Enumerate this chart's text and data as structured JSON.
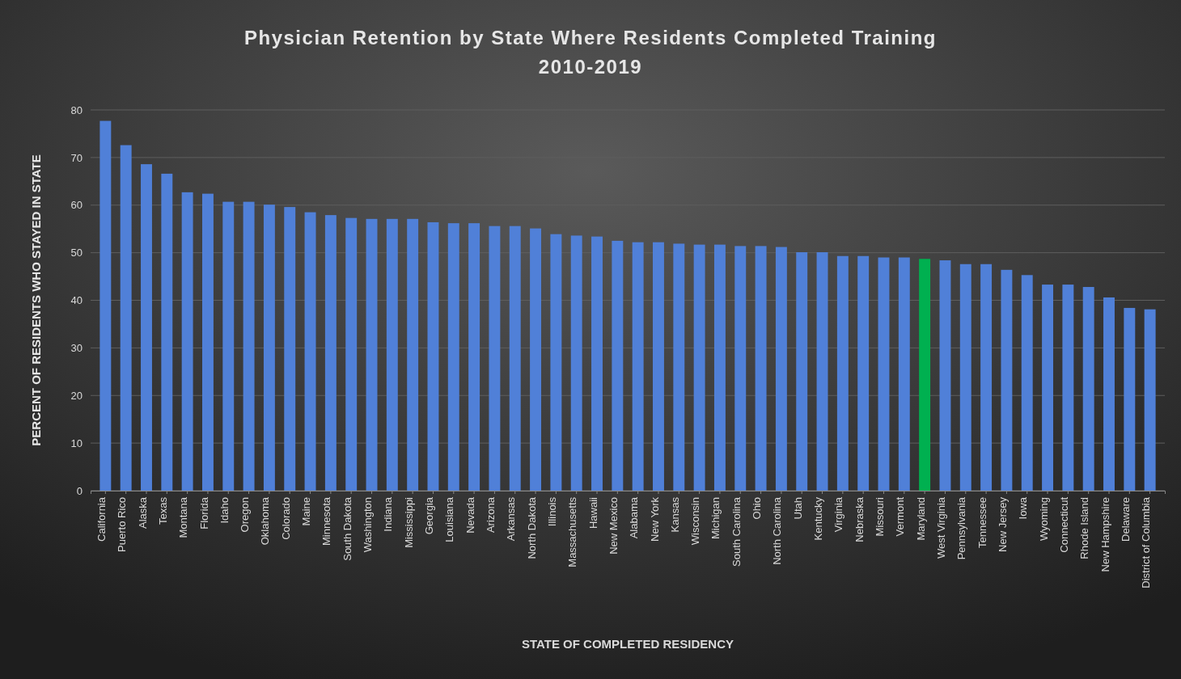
{
  "chart_data": {
    "type": "bar",
    "title": "Physician Retention by State Where Residents Completed Training\n2010-2019",
    "xlabel": "STATE OF COMPLETED RESIDENCY",
    "ylabel": "PERCENT OF RESIDENTS WHO STAYED IN STATE",
    "categories": [
      "California",
      "Puerto Rico",
      "Alaska",
      "Texas",
      "Montana",
      "Florida",
      "Idaho",
      "Oregon",
      "Oklahoma",
      "Colorado",
      "Maine",
      "Minnesota",
      "South Dakota",
      "Washington",
      "Indiana",
      "Mississippi",
      "Georgia",
      "Louisiana",
      "Nevada",
      "Arizona",
      "Arkansas",
      "North Dakota",
      "Illinois",
      "Massachusetts",
      "Hawaii",
      "New Mexico",
      "Alabama",
      "New York",
      "Kansas",
      "Wisconsin",
      "Michigan",
      "South Carolina",
      "Ohio",
      "North Carolina",
      "Utah",
      "Kentucky",
      "Virginia",
      "Nebraska",
      "Missouri",
      "Vermont",
      "Maryland",
      "West Virginia",
      "Pennsylvania",
      "Tennessee",
      "New Jersey",
      "Iowa",
      "Wyoming",
      "Connecticut",
      "Rhode Island",
      "New Hampshire",
      "Delaware",
      "District of Columbia"
    ],
    "values": [
      77.7,
      72.6,
      68.6,
      66.6,
      62.7,
      62.4,
      60.7,
      60.7,
      60.1,
      59.6,
      58.5,
      57.9,
      57.3,
      57.1,
      57.1,
      57.1,
      56.4,
      56.2,
      56.2,
      55.6,
      55.6,
      55.1,
      53.9,
      53.6,
      53.4,
      52.5,
      52.2,
      52.2,
      51.9,
      51.7,
      51.7,
      51.4,
      51.4,
      51.2,
      50.1,
      50.1,
      49.3,
      49.3,
      49.0,
      49.0,
      48.7,
      48.4,
      47.6,
      47.6,
      46.4,
      45.3,
      43.3,
      43.3,
      42.8,
      40.6,
      38.4,
      38.1
    ],
    "colors": [
      "#5080d8",
      "#5080d8",
      "#5080d8",
      "#5080d8",
      "#5080d8",
      "#5080d8",
      "#5080d8",
      "#5080d8",
      "#5080d8",
      "#5080d8",
      "#5080d8",
      "#5080d8",
      "#5080d8",
      "#5080d8",
      "#5080d8",
      "#5080d8",
      "#5080d8",
      "#5080d8",
      "#5080d8",
      "#5080d8",
      "#5080d8",
      "#5080d8",
      "#5080d8",
      "#5080d8",
      "#5080d8",
      "#5080d8",
      "#5080d8",
      "#5080d8",
      "#5080d8",
      "#5080d8",
      "#5080d8",
      "#5080d8",
      "#5080d8",
      "#5080d8",
      "#5080d8",
      "#5080d8",
      "#5080d8",
      "#5080d8",
      "#5080d8",
      "#5080d8",
      "#00b050",
      "#5080d8",
      "#5080d8",
      "#5080d8",
      "#5080d8",
      "#5080d8",
      "#5080d8",
      "#5080d8",
      "#5080d8",
      "#5080d8",
      "#5080d8",
      "#5080d8"
    ],
    "ylim": [
      0,
      80
    ],
    "yticks": [
      0,
      10,
      20,
      30,
      40,
      50,
      60,
      70,
      80
    ],
    "grid": "y"
  }
}
